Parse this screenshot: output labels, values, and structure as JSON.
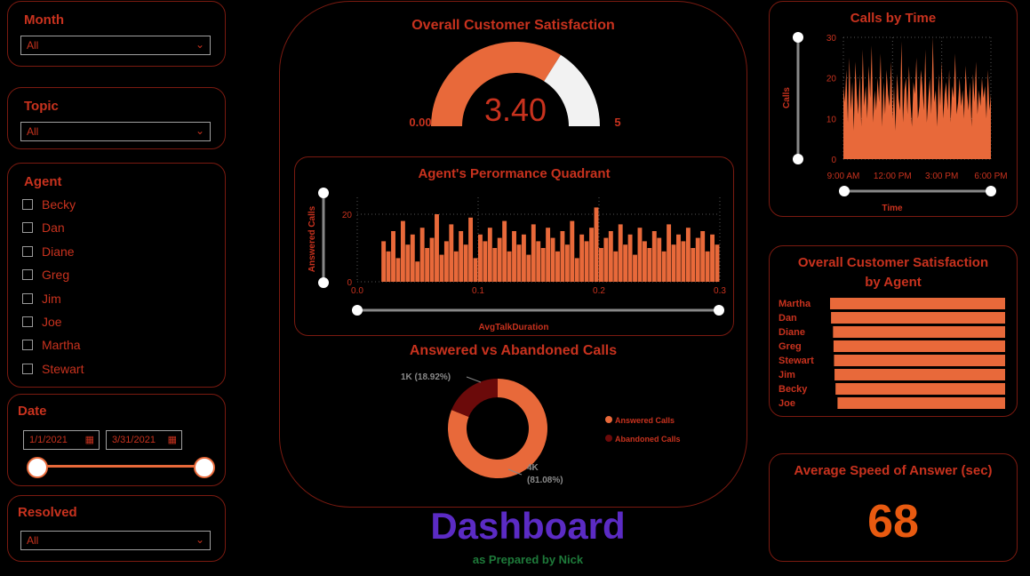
{
  "filters": {
    "month": {
      "label": "Month",
      "value": "All"
    },
    "topic": {
      "label": "Topic",
      "value": "All"
    },
    "agent": {
      "label": "Agent",
      "options": [
        "Becky",
        "Dan",
        "Diane",
        "Greg",
        "Jim",
        "Joe",
        "Martha",
        "Stewart"
      ]
    },
    "date": {
      "label": "Date",
      "start": "1/1/2021",
      "end": "3/31/2021"
    },
    "resolved": {
      "label": "Resolved",
      "value": "All"
    }
  },
  "colors": {
    "accent": "#e8693a",
    "title": "#c8321e",
    "dark_red": "#6b0a0a",
    "gauge_remainder": "#f2f2f2",
    "dashboard_title": "#5b2bc4",
    "subtitle": "#1e7a3a"
  },
  "gauge": {
    "title": "Overall Customer Satisfaction",
    "value": "3.40",
    "min": "0.00",
    "max": "5",
    "value_num": 3.4,
    "max_num": 5
  },
  "quadrant": {
    "title": "Agent's Perormance Quadrant",
    "chart_data": {
      "type": "bar",
      "xlabel": "AvgTalkDuration",
      "ylabel": "Answered Calls",
      "x_ticks": [
        "0.0",
        "0.1",
        "0.2",
        "0.3"
      ],
      "y_ticks": [
        "0",
        "20"
      ],
      "xlim": [
        0,
        0.3
      ],
      "ylim": [
        0,
        25
      ],
      "x": [
        0.02,
        0.024,
        0.028,
        0.032,
        0.036,
        0.04,
        0.044,
        0.048,
        0.052,
        0.056,
        0.06,
        0.064,
        0.068,
        0.072,
        0.076,
        0.08,
        0.084,
        0.088,
        0.092,
        0.096,
        0.1,
        0.104,
        0.108,
        0.112,
        0.116,
        0.12,
        0.124,
        0.128,
        0.132,
        0.136,
        0.14,
        0.144,
        0.148,
        0.152,
        0.156,
        0.16,
        0.164,
        0.168,
        0.172,
        0.176,
        0.18,
        0.184,
        0.188,
        0.192,
        0.196,
        0.2,
        0.204,
        0.208,
        0.212,
        0.216,
        0.22,
        0.224,
        0.228,
        0.232,
        0.236,
        0.24,
        0.244,
        0.248,
        0.252,
        0.256,
        0.26,
        0.264,
        0.268,
        0.272,
        0.276,
        0.28,
        0.284,
        0.288,
        0.292,
        0.296
      ],
      "values": [
        12,
        9,
        15,
        7,
        18,
        11,
        14,
        6,
        16,
        10,
        13,
        20,
        8,
        12,
        17,
        9,
        15,
        11,
        19,
        7,
        14,
        12,
        16,
        10,
        13,
        18,
        9,
        15,
        11,
        14,
        8,
        17,
        12,
        10,
        16,
        13,
        9,
        15,
        11,
        18,
        7,
        14,
        12,
        16,
        22,
        10,
        13,
        15,
        9,
        17,
        11,
        14,
        8,
        16,
        12,
        10,
        15,
        13,
        9,
        17,
        11,
        14,
        12,
        16,
        10,
        13,
        15,
        9,
        14,
        11
      ]
    }
  },
  "donut": {
    "title": "Answered vs Abandoned Calls",
    "chart_data": {
      "type": "pie",
      "labels": [
        "Answered Calls",
        "Abandoned Calls"
      ],
      "values": [
        81.08,
        18.92
      ],
      "data_labels": [
        [
          "4K",
          "(81.08%)"
        ],
        [
          "1K (18.92%)"
        ]
      ]
    }
  },
  "footer": {
    "title": "Dashboard",
    "subtitle": "as Prepared by Nick"
  },
  "calls_by_time": {
    "title": "Calls by Time",
    "chart_data": {
      "type": "area",
      "xlabel": "Time",
      "ylabel": "Calls",
      "x_ticks": [
        "9:00 AM",
        "12:00 PM",
        "3:00 PM",
        "6:00 PM"
      ],
      "y_ticks": [
        "0",
        "10",
        "20",
        "30"
      ],
      "ylim": [
        0,
        30
      ],
      "values": [
        18,
        14,
        22,
        9,
        25,
        12,
        19,
        7,
        24,
        16,
        11,
        21,
        8,
        27,
        13,
        18,
        10,
        23,
        15,
        28,
        9,
        17,
        12,
        20,
        14,
        26,
        8,
        19,
        11,
        22,
        16,
        13,
        24,
        10,
        18,
        7,
        21,
        15,
        12,
        29,
        9,
        17,
        20,
        11,
        23,
        14,
        8,
        19,
        16,
        25,
        10,
        13,
        22,
        18,
        12,
        27,
        9,
        15,
        20,
        11,
        30,
        14,
        17,
        8,
        21,
        13,
        24,
        10,
        16,
        19,
        12,
        22,
        9,
        18,
        15,
        26,
        11,
        14,
        20,
        13,
        17,
        10,
        23,
        16,
        12,
        19,
        8,
        21,
        14,
        24,
        11,
        17,
        13,
        20,
        15,
        18,
        10,
        22,
        12,
        16
      ]
    }
  },
  "by_agent": {
    "title_line1": "Overall Customer Satisfaction",
    "title_line2": "by Agent",
    "chart_data": {
      "type": "bar",
      "categories": [
        "Martha",
        "Dan",
        "Diane",
        "Greg",
        "Stewart",
        "Jim",
        "Becky",
        "Joe"
      ],
      "values": [
        3.52,
        3.5,
        3.46,
        3.45,
        3.44,
        3.43,
        3.41,
        3.37
      ],
      "xlim": [
        0,
        3.52
      ]
    }
  },
  "asa": {
    "title": "Average Speed of Answer (sec)",
    "value": "68"
  }
}
